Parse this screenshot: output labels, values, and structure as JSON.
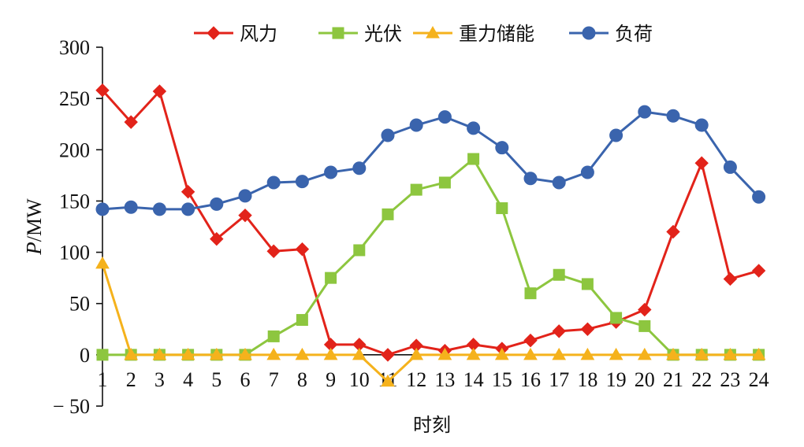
{
  "chart_data": {
    "type": "line",
    "title": "",
    "xlabel": "时刻",
    "ylabel_italic": "P",
    "ylabel_unit": "/MW",
    "ylim": [
      -50,
      300
    ],
    "yticks": [
      -50,
      0,
      50,
      100,
      150,
      200,
      250,
      300
    ],
    "ytick_labels": [
      "− 50",
      "0",
      "50",
      "100",
      "150",
      "200",
      "250",
      "300"
    ],
    "x": [
      1,
      2,
      3,
      4,
      5,
      6,
      7,
      8,
      9,
      10,
      11,
      12,
      13,
      14,
      15,
      16,
      17,
      18,
      19,
      20,
      21,
      22,
      23,
      24
    ],
    "xtick_labels": [
      "1",
      "2",
      "3",
      "4",
      "5",
      "6",
      "7",
      "8",
      "9",
      "10",
      "11",
      "12",
      "13",
      "14",
      "15",
      "16",
      "17",
      "18",
      "19",
      "20",
      "21",
      "22",
      "23",
      "24"
    ],
    "grid": false,
    "legend_position": "top",
    "series": [
      {
        "name": "风力",
        "color": "#e2231a",
        "marker": "diamond",
        "values": [
          258,
          227,
          257,
          159,
          113,
          136,
          101,
          103,
          10,
          10,
          0,
          9,
          4,
          10,
          6,
          14,
          23,
          25,
          32,
          44,
          120,
          187,
          74,
          82
        ]
      },
      {
        "name": "光伏",
        "color": "#8dc63f",
        "marker": "square",
        "values": [
          0,
          0,
          0,
          0,
          0,
          0,
          18,
          34,
          75,
          102,
          137,
          161,
          168,
          191,
          143,
          60,
          78,
          69,
          36,
          28,
          0,
          0,
          0,
          0
        ]
      },
      {
        "name": "重力储能",
        "color": "#f5b21c",
        "marker": "triangle",
        "values": [
          89,
          0,
          0,
          0,
          0,
          0,
          0,
          0,
          0,
          0,
          -26,
          0,
          0,
          0,
          0,
          0,
          0,
          0,
          0,
          0,
          0,
          0,
          0,
          0
        ]
      },
      {
        "name": "负荷",
        "color": "#3a64ad",
        "marker": "circle",
        "values": [
          142,
          144,
          142,
          142,
          147,
          155,
          168,
          169,
          178,
          182,
          214,
          224,
          232,
          221,
          202,
          172,
          168,
          178,
          214,
          237,
          233,
          224,
          183,
          154
        ]
      }
    ]
  }
}
